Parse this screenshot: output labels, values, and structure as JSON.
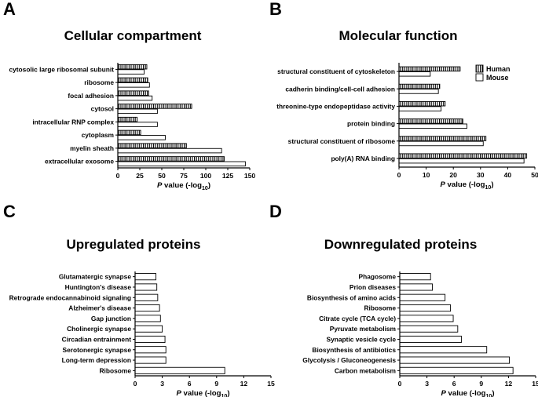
{
  "colors": {
    "bar_stroke": "#000000",
    "human_fill": "url(#hatch)",
    "mouse_fill": "#ffffff",
    "axis": "#000000"
  },
  "chart_data": [
    {
      "letter": "A",
      "title": "Cellular compartment",
      "type": "bar",
      "orientation": "horizontal",
      "categories": [
        "cytosolic large ribosomal subunit",
        "ribosome",
        "focal adhesion",
        "cytosol",
        "intracellular RNP complex",
        "cytoplasm",
        "myelin sheath",
        "extracellular exosome"
      ],
      "series": [
        {
          "name": "Human",
          "values": [
            33,
            34,
            35,
            84,
            22,
            26,
            78,
            121
          ]
        },
        {
          "name": "Mouse",
          "values": [
            30,
            36,
            39,
            45,
            45,
            54,
            118,
            145
          ]
        }
      ],
      "xlim": [
        0,
        150
      ],
      "xticks": [
        "0",
        "25",
        "50",
        "75",
        "100",
        "125",
        "150"
      ],
      "xlabel_italic": "P",
      "xlabel_rest": " value (-log",
      "xlabel_sub": "10",
      "xlabel_close": ")"
    },
    {
      "letter": "B",
      "title": "Molecular function",
      "type": "bar",
      "orientation": "horizontal",
      "categories": [
        "structural constituent of cytoskeleton",
        "cadherin binding/cell-cell adhesion",
        "threonine-type endopeptidase activity",
        "protein binding",
        "structural constituent of ribosome",
        "poly(A) RNA binding"
      ],
      "series": [
        {
          "name": "Human",
          "values": [
            22.5,
            15,
            17,
            23.5,
            32,
            47
          ]
        },
        {
          "name": "Mouse",
          "values": [
            11.5,
            14.5,
            15.5,
            25,
            31,
            46
          ]
        }
      ],
      "xlim": [
        0,
        50
      ],
      "xticks": [
        "0",
        "10",
        "20",
        "30",
        "40",
        "50"
      ],
      "legend": [
        "Human",
        "Mouse"
      ],
      "legend_position": "top-right",
      "xlabel_italic": "P",
      "xlabel_rest": " value (-log",
      "xlabel_sub": "10",
      "xlabel_close": ")"
    },
    {
      "letter": "C",
      "title": "Upregulated proteins",
      "type": "bar",
      "orientation": "horizontal",
      "categories": [
        "Glutamatergic synapse",
        "Huntington's disease",
        "Retrograde endocannabinoid signaling",
        "Alzheimer's disease",
        "Gap junction",
        "Cholinergic synapse",
        "Circadian entrainment",
        "Serotonergic synapse",
        "Long-term depression",
        "Ribosome"
      ],
      "series": [
        {
          "name": "Upregulated",
          "values": [
            2.3,
            2.4,
            2.5,
            2.7,
            2.8,
            3.0,
            3.3,
            3.4,
            3.4,
            9.9
          ]
        }
      ],
      "xlim": [
        0,
        15
      ],
      "xticks": [
        "0",
        "3",
        "6",
        "9",
        "12",
        "15"
      ],
      "xlabel_italic": "P",
      "xlabel_rest": " value (-log",
      "xlabel_sub": "10",
      "xlabel_close": ")"
    },
    {
      "letter": "D",
      "title": "Downregulated proteins",
      "type": "bar",
      "orientation": "horizontal",
      "categories": [
        "Phagosome",
        "Prion diseases",
        "Biosynthesis of amino acids",
        "Ribosome",
        "Citrate cycle (TCA cycle)",
        "Pyruvate metabolism",
        "Synaptic vesicle cycle",
        "Biosynthesis of antibiotics",
        "Glycolysis / Gluconeogenesis",
        "Carbon metabolism"
      ],
      "series": [
        {
          "name": "Downregulated",
          "values": [
            3.4,
            3.6,
            5.0,
            5.6,
            5.9,
            6.4,
            6.8,
            9.6,
            12.1,
            12.5
          ]
        }
      ],
      "xlim": [
        0,
        15
      ],
      "xticks": [
        "0",
        "3",
        "6",
        "9",
        "12",
        "15"
      ],
      "xlabel_italic": "P",
      "xlabel_rest": " value (-log",
      "xlabel_sub": "10",
      "xlabel_close": ")"
    }
  ]
}
